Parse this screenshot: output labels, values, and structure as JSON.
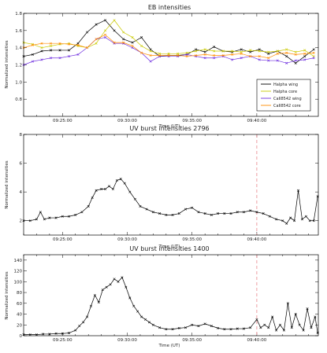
{
  "chart_data": [
    {
      "type": "line",
      "title": "EB intensities",
      "xlabel": "Time (UT)",
      "ylabel": "Normalized intensities",
      "xlim_minutes": [
        22.0,
        44.75
      ],
      "ylim": [
        0.6,
        1.8
      ],
      "xticks": [
        "09:25:00",
        "09:30:00",
        "09:35:00",
        "09:40:00"
      ],
      "yticks": [
        "0.8",
        "1.0",
        "1.2",
        "1.4",
        "1.6",
        "1.8"
      ],
      "legend_position": "lower-right",
      "series": [
        {
          "name": "Halpha wing",
          "color": "#000000",
          "marker": "x",
          "t": [
            22.0,
            22.7,
            23.4,
            24.1,
            24.8,
            25.5,
            26.2,
            26.9,
            27.6,
            28.3,
            29.0,
            29.7,
            30.4,
            31.1,
            31.8,
            32.5,
            33.2,
            33.9,
            34.6,
            35.3,
            36.0,
            36.7,
            37.4,
            38.1,
            38.8,
            39.5,
            40.2,
            40.9,
            41.6,
            42.3,
            43.0,
            43.7,
            44.4
          ],
          "v": [
            1.3,
            1.32,
            1.36,
            1.37,
            1.37,
            1.37,
            1.45,
            1.58,
            1.67,
            1.72,
            1.6,
            1.5,
            1.46,
            1.52,
            1.38,
            1.3,
            1.31,
            1.31,
            1.32,
            1.38,
            1.35,
            1.41,
            1.36,
            1.35,
            1.38,
            1.35,
            1.38,
            1.33,
            1.36,
            1.3,
            1.22,
            1.3,
            1.38
          ]
        },
        {
          "name": "Halpha core",
          "color": "#c9c900",
          "marker": "x",
          "t": [
            22.0,
            22.7,
            23.4,
            24.1,
            24.8,
            25.5,
            26.2,
            26.9,
            27.6,
            28.3,
            29.0,
            29.7,
            30.4,
            31.1,
            31.8,
            32.5,
            33.2,
            33.9,
            34.6,
            35.3,
            36.0,
            36.7,
            37.4,
            38.1,
            38.8,
            39.5,
            40.2,
            40.9,
            41.6,
            42.3,
            43.0,
            43.7,
            44.4
          ],
          "v": [
            1.46,
            1.44,
            1.4,
            1.42,
            1.44,
            1.45,
            1.42,
            1.4,
            1.45,
            1.6,
            1.72,
            1.58,
            1.52,
            1.42,
            1.36,
            1.33,
            1.33,
            1.33,
            1.34,
            1.36,
            1.38,
            1.36,
            1.36,
            1.36,
            1.35,
            1.37,
            1.36,
            1.35,
            1.36,
            1.38,
            1.35,
            1.37,
            1.3
          ]
        },
        {
          "name": "CaII8542 wing",
          "color": "#6f2fdf",
          "marker": "x",
          "t": [
            22.0,
            22.7,
            23.4,
            24.1,
            24.8,
            25.5,
            26.2,
            26.9,
            27.6,
            28.3,
            29.0,
            29.7,
            30.4,
            31.1,
            31.8,
            32.5,
            33.2,
            33.9,
            34.6,
            35.3,
            36.0,
            36.7,
            37.4,
            38.1,
            38.8,
            39.5,
            40.2,
            40.9,
            41.6,
            42.3,
            43.0,
            43.7,
            44.4
          ],
          "v": [
            1.2,
            1.24,
            1.26,
            1.28,
            1.28,
            1.3,
            1.32,
            1.4,
            1.5,
            1.52,
            1.45,
            1.45,
            1.4,
            1.34,
            1.24,
            1.3,
            1.3,
            1.3,
            1.32,
            1.3,
            1.28,
            1.28,
            1.3,
            1.26,
            1.28,
            1.3,
            1.26,
            1.25,
            1.25,
            1.22,
            1.25,
            1.26,
            1.28
          ]
        },
        {
          "name": "CaII8542 core",
          "color": "#ff8c00",
          "marker": "x",
          "t": [
            22.0,
            22.7,
            23.4,
            24.1,
            24.8,
            25.5,
            26.2,
            26.9,
            27.6,
            28.3,
            29.0,
            29.7,
            30.4,
            31.1,
            31.8,
            32.5,
            33.2,
            33.9,
            34.6,
            35.3,
            36.0,
            36.7,
            37.4,
            38.1,
            38.8,
            39.5,
            40.2,
            40.9,
            41.6,
            42.3,
            43.0,
            43.7,
            44.4
          ],
          "v": [
            1.4,
            1.43,
            1.45,
            1.45,
            1.45,
            1.44,
            1.43,
            1.4,
            1.5,
            1.55,
            1.46,
            1.46,
            1.42,
            1.34,
            1.31,
            1.31,
            1.31,
            1.31,
            1.3,
            1.31,
            1.32,
            1.31,
            1.31,
            1.32,
            1.33,
            1.3,
            1.3,
            1.28,
            1.33,
            1.34,
            1.32,
            1.33,
            1.34
          ]
        }
      ]
    },
    {
      "type": "line",
      "title": "UV burst intensities 2796",
      "xlabel": "Time (UT)",
      "ylabel": "Normalized intensities",
      "xlim_minutes": [
        22.0,
        44.75
      ],
      "ylim": [
        1,
        8
      ],
      "xticks": [
        "09:25:00",
        "09:30:00",
        "09:35:00",
        "09:40:00"
      ],
      "yticks": [
        "2",
        "4",
        "6",
        "8"
      ],
      "marker_line_minutes": 40.0,
      "series": [
        {
          "color": "#000000",
          "marker": "x",
          "t": [
            22.0,
            22.5,
            23.0,
            23.3,
            23.6,
            24.0,
            24.5,
            25.0,
            25.5,
            26.0,
            26.5,
            27.0,
            27.3,
            27.6,
            28.0,
            28.3,
            28.6,
            28.9,
            29.2,
            29.5,
            29.8,
            30.2,
            30.6,
            31.0,
            31.5,
            32.0,
            32.5,
            33.0,
            33.5,
            34.0,
            34.5,
            35.0,
            35.5,
            36.0,
            36.5,
            37.0,
            37.5,
            38.0,
            38.5,
            39.0,
            39.5,
            40.0,
            40.5,
            41.0,
            41.5,
            42.0,
            42.3,
            42.6,
            42.9,
            43.2,
            43.5,
            43.8,
            44.1,
            44.4,
            44.7
          ],
          "v": [
            2.0,
            2.0,
            2.1,
            2.6,
            2.1,
            2.2,
            2.2,
            2.3,
            2.3,
            2.4,
            2.6,
            3.0,
            3.6,
            4.1,
            4.2,
            4.2,
            4.4,
            4.2,
            4.8,
            4.9,
            4.6,
            4.0,
            3.5,
            3.0,
            2.8,
            2.6,
            2.5,
            2.4,
            2.4,
            2.5,
            2.8,
            2.9,
            2.6,
            2.5,
            2.4,
            2.5,
            2.5,
            2.5,
            2.6,
            2.6,
            2.7,
            2.6,
            2.5,
            2.3,
            2.1,
            2.0,
            1.8,
            2.2,
            2.0,
            4.1,
            2.1,
            2.3,
            2.0,
            2.0,
            3.7
          ]
        }
      ]
    },
    {
      "type": "line",
      "title": "UV burst intensities 1400",
      "xlabel": "Time (UT)",
      "ylabel": "Normalized intensities",
      "xlim_minutes": [
        22.0,
        44.75
      ],
      "ylim": [
        0,
        150
      ],
      "xticks": [
        "09:25:00",
        "09:30:00",
        "09:35:00",
        "09:40:00"
      ],
      "yticks": [
        "0",
        "20",
        "40",
        "60",
        "80",
        "100",
        "120",
        "140"
      ],
      "marker_line_minutes": 40.0,
      "series": [
        {
          "color": "#000000",
          "marker": "x",
          "t": [
            22.0,
            22.5,
            23.0,
            23.5,
            24.0,
            24.5,
            25.0,
            25.5,
            26.0,
            26.3,
            26.6,
            26.9,
            27.2,
            27.5,
            27.8,
            28.1,
            28.4,
            28.7,
            29.0,
            29.3,
            29.6,
            29.9,
            30.2,
            30.5,
            30.8,
            31.1,
            31.4,
            31.7,
            32.0,
            32.5,
            33.0,
            33.5,
            34.0,
            34.5,
            35.0,
            35.5,
            36.0,
            36.5,
            37.0,
            37.5,
            38.0,
            38.5,
            39.0,
            39.5,
            40.0,
            40.3,
            40.6,
            40.9,
            41.2,
            41.5,
            41.8,
            42.1,
            42.4,
            42.7,
            43.0,
            43.3,
            43.6,
            43.9,
            44.2,
            44.5,
            44.7
          ],
          "v": [
            2,
            2,
            2,
            3,
            3,
            4,
            4,
            5,
            10,
            18,
            25,
            35,
            55,
            75,
            62,
            85,
            90,
            95,
            105,
            100,
            108,
            90,
            70,
            55,
            45,
            35,
            30,
            25,
            20,
            15,
            12,
            12,
            14,
            15,
            20,
            18,
            22,
            18,
            14,
            12,
            12,
            13,
            13,
            15,
            30,
            15,
            20,
            15,
            35,
            10,
            20,
            10,
            60,
            15,
            40,
            20,
            10,
            50,
            15,
            35,
            5
          ]
        }
      ]
    }
  ]
}
